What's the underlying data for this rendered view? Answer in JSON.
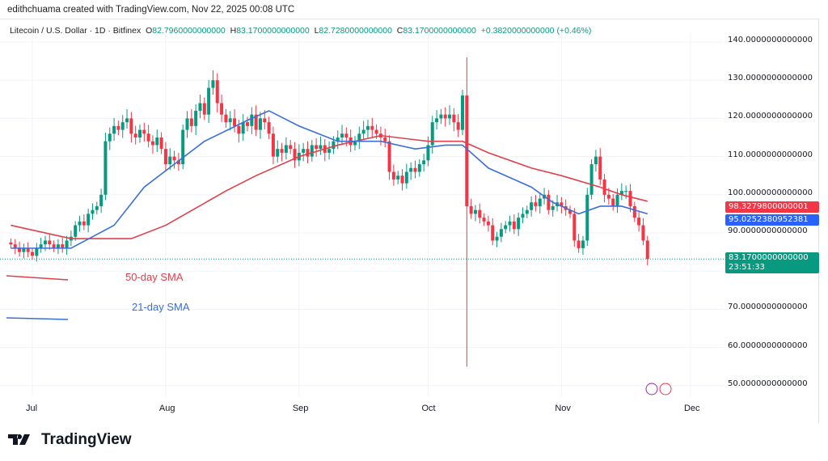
{
  "credit": "edithchuama created with TradingView.com, Nov 22, 2025 00:08 UTC",
  "symbol": "Litecoin / U.S. Dollar · 1D · Bitfinex",
  "ohlc": {
    "o_label": "O",
    "o": "82.7960000000000",
    "h_label": "H",
    "h": "83.1700000000000",
    "l_label": "L",
    "l": "82.7280000000000",
    "c_label": "C",
    "c": "83.1700000000000",
    "change": "+0.3820000000000 (+0.46%)"
  },
  "price_tags": {
    "sma50": "98.3279800000001",
    "sma21": "95.0252380952381",
    "last": "83.1700000000000",
    "countdown": "23:51:33"
  },
  "colors": {
    "up": "#089981",
    "down": "#f23645",
    "sma50": "#e0404a",
    "sma21": "#3a6fd8",
    "last": "#089981"
  },
  "legend": {
    "sma50": "50-day SMA",
    "sma21": "21-day SMA"
  },
  "brand": "TradingView",
  "chart_data": {
    "type": "candlestick",
    "start_date": "2025-06-26",
    "ylim": [
      47,
      143
    ],
    "y_ticks": [
      "140.0000000000000",
      "130.0000000000000",
      "120.0000000000000",
      "110.0000000000000",
      "100.0000000000000",
      "90.0000000000000",
      "70.0000000000000",
      "60.0000000000000",
      "50.0000000000000"
    ],
    "y_tick_values": [
      140,
      130,
      120,
      110,
      100,
      90,
      70,
      60,
      50
    ],
    "x_ticks": [
      {
        "label": "Jul",
        "date": "2025-07-01"
      },
      {
        "label": "Aug",
        "date": "2025-08-01"
      },
      {
        "label": "Sep",
        "date": "2025-09-01"
      },
      {
        "label": "Oct",
        "date": "2025-10-01"
      },
      {
        "label": "Nov",
        "date": "2025-11-01"
      },
      {
        "label": "Dec",
        "date": "2025-12-01"
      }
    ],
    "grid": true,
    "closes": [
      87,
      86,
      85,
      86,
      85,
      84,
      86,
      87,
      88,
      87,
      86,
      87,
      86,
      88,
      89,
      92,
      93,
      92,
      95,
      96,
      97,
      100,
      114,
      116,
      118,
      117,
      119,
      120,
      116,
      115,
      117,
      116,
      114,
      113,
      115,
      112,
      108,
      110,
      109,
      108,
      117,
      120,
      118,
      122,
      124,
      121,
      128,
      130,
      124,
      121,
      119,
      120,
      118,
      116,
      119,
      118,
      121,
      117,
      120,
      119,
      116,
      110,
      112,
      111,
      113,
      112,
      109,
      111,
      112,
      110,
      113,
      112,
      113,
      111,
      112,
      114,
      115,
      116,
      115,
      113,
      114,
      116,
      117,
      118,
      117,
      116,
      115,
      114,
      106,
      104,
      105,
      103,
      106,
      107,
      106,
      108,
      109,
      113,
      119,
      120,
      121,
      120,
      121,
      119,
      117,
      126,
      97,
      95,
      96,
      94,
      93,
      92,
      88,
      89,
      91,
      92,
      93,
      91,
      94,
      95,
      96,
      98,
      97,
      99,
      100,
      96,
      97,
      98,
      97,
      96,
      95,
      88,
      86,
      88,
      100,
      108,
      110,
      104,
      100,
      99,
      97,
      100,
      101,
      101,
      97,
      94,
      92,
      88,
      83.17
    ],
    "extremes": [
      {
        "date": "2025-10-10",
        "high": 136,
        "low": 55
      }
    ],
    "series": [
      {
        "name": "50-day SMA",
        "points": [
          [
            "2025-06-26",
            92
          ],
          [
            "2025-07-10",
            88.5
          ],
          [
            "2025-07-24",
            88.5
          ],
          [
            "2025-08-01",
            92
          ],
          [
            "2025-08-15",
            101
          ],
          [
            "2025-08-22",
            105
          ],
          [
            "2025-09-01",
            110
          ],
          [
            "2025-09-10",
            113
          ],
          [
            "2025-09-20",
            115.5
          ],
          [
            "2025-10-01",
            114
          ],
          [
            "2025-10-09",
            114
          ],
          [
            "2025-10-15",
            111
          ],
          [
            "2025-10-25",
            107
          ],
          [
            "2025-11-01",
            105
          ],
          [
            "2025-11-10",
            102
          ],
          [
            "2025-11-15",
            100
          ],
          [
            "2025-11-21",
            98.3
          ]
        ]
      },
      {
        "name": "21-day SMA",
        "points": [
          [
            "2025-06-26",
            86
          ],
          [
            "2025-07-10",
            86
          ],
          [
            "2025-07-20",
            92
          ],
          [
            "2025-07-27",
            102
          ],
          [
            "2025-08-03",
            108
          ],
          [
            "2025-08-10",
            114
          ],
          [
            "2025-08-20",
            119.5
          ],
          [
            "2025-08-25",
            122
          ],
          [
            "2025-09-01",
            118
          ],
          [
            "2025-09-10",
            114
          ],
          [
            "2025-09-20",
            114
          ],
          [
            "2025-09-28",
            112
          ],
          [
            "2025-10-05",
            113
          ],
          [
            "2025-10-09",
            113
          ],
          [
            "2025-10-15",
            107
          ],
          [
            "2025-10-25",
            102
          ],
          [
            "2025-10-30",
            98
          ],
          [
            "2025-11-05",
            95
          ],
          [
            "2025-11-10",
            97
          ],
          [
            "2025-11-15",
            97
          ],
          [
            "2025-11-21",
            95
          ]
        ]
      }
    ]
  }
}
